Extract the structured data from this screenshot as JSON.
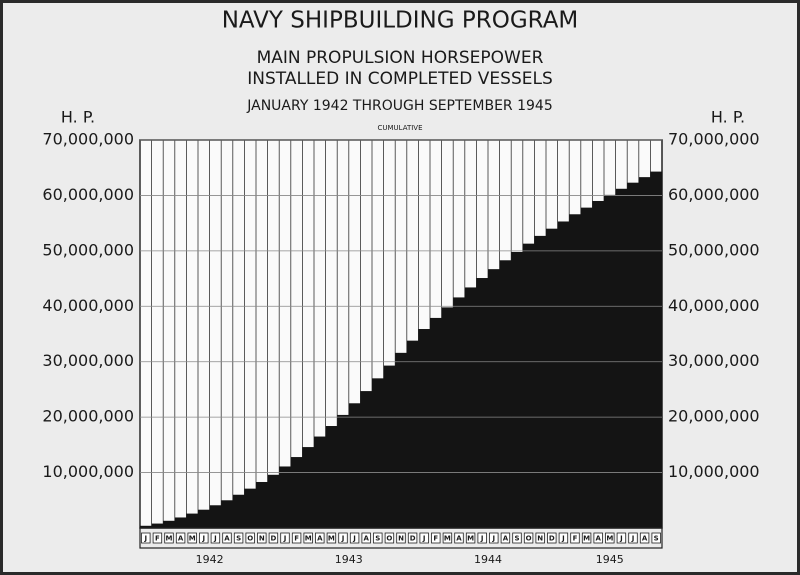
{
  "chart_data": {
    "type": "bar",
    "title": "NAVY SHIPBUILDING PROGRAM",
    "subtitle": [
      "MAIN PROPULSION HORSEPOWER",
      "INSTALLED IN COMPLETED VESSELS"
    ],
    "date_range": "JANUARY 1942 THROUGH SEPTEMBER 1945",
    "annotation": "CUMULATIVE",
    "ylabel": "H. P.",
    "categories": [
      "J",
      "F",
      "M",
      "A",
      "M",
      "J",
      "J",
      "A",
      "S",
      "O",
      "N",
      "D",
      "J",
      "F",
      "M",
      "A",
      "M",
      "J",
      "J",
      "A",
      "S",
      "O",
      "N",
      "D",
      "J",
      "F",
      "M",
      "A",
      "M",
      "J",
      "J",
      "A",
      "S",
      "O",
      "N",
      "D",
      "J",
      "F",
      "M",
      "A",
      "M",
      "J",
      "J",
      "A",
      "S"
    ],
    "year_labels": [
      "1942",
      "1943",
      "1944",
      "1945"
    ],
    "values": [
      400000,
      800000,
      1300000,
      1900000,
      2600000,
      3300000,
      4100000,
      5000000,
      6000000,
      7100000,
      8300000,
      9600000,
      11100000,
      12800000,
      14600000,
      16500000,
      18400000,
      20400000,
      22500000,
      24700000,
      27000000,
      29300000,
      31600000,
      33800000,
      35900000,
      37900000,
      39800000,
      41600000,
      43400000,
      45100000,
      46700000,
      48300000,
      49800000,
      51300000,
      52700000,
      54000000,
      55300000,
      56600000,
      57800000,
      59000000,
      60100000,
      61200000,
      62300000,
      63300000,
      64300000
    ],
    "color": "#141414",
    "ylim": [
      0,
      70000000
    ],
    "yticks": [
      {
        "value": 10000000,
        "label": "10,000,000"
      },
      {
        "value": 20000000,
        "label": "20,000,000"
      },
      {
        "value": 30000000,
        "label": "30,000,000"
      },
      {
        "value": 40000000,
        "label": "40,000,000"
      },
      {
        "value": 50000000,
        "label": "50,000,000"
      },
      {
        "value": 60000000,
        "label": "60,000,000"
      },
      {
        "value": 70000000,
        "label": "70,000,000"
      }
    ],
    "grid": true
  }
}
